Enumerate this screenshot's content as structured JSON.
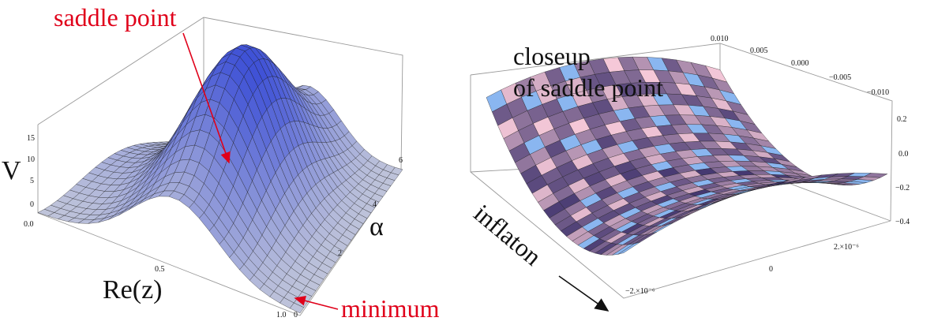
{
  "chart_data": [
    {
      "type": "surface3d",
      "axes": {
        "z_label": "V",
        "y_label": "α",
        "x_label": "Re(z)",
        "z_ticks": [
          "15",
          "10",
          "5",
          "0"
        ],
        "y_ticks": [
          "0",
          "2",
          "4",
          "6"
        ],
        "x_ticks": [
          "0.0",
          "0.5",
          "1.0"
        ],
        "x_range": [
          0,
          1
        ],
        "y_range": [
          0,
          6.28
        ],
        "z_range": [
          0,
          15
        ]
      },
      "annotations": {
        "saddle": "saddle point",
        "minimum": "minimum"
      },
      "colors": {
        "low": "#ececdc",
        "high": "#3b4ed6",
        "annotation": "#e0001a"
      }
    },
    {
      "type": "surface3d",
      "title_lines": [
        "closeup",
        "of saddle point"
      ],
      "axes": {
        "back_ticks": [
          "0.010",
          "0.005",
          "0.000",
          "−0.005",
          "−0.010"
        ],
        "right_ticks": [
          "0.2",
          "0.0",
          "−0.2",
          "−0.4"
        ],
        "front_ticks": [
          "−2.×10⁻⁶",
          "0",
          "2.×10⁻⁶"
        ]
      },
      "direction_label": "inflaton",
      "colors": {
        "light": "#f5c8d8",
        "dark": "#3a2f6a",
        "blue": "#8ab6f0"
      }
    }
  ]
}
